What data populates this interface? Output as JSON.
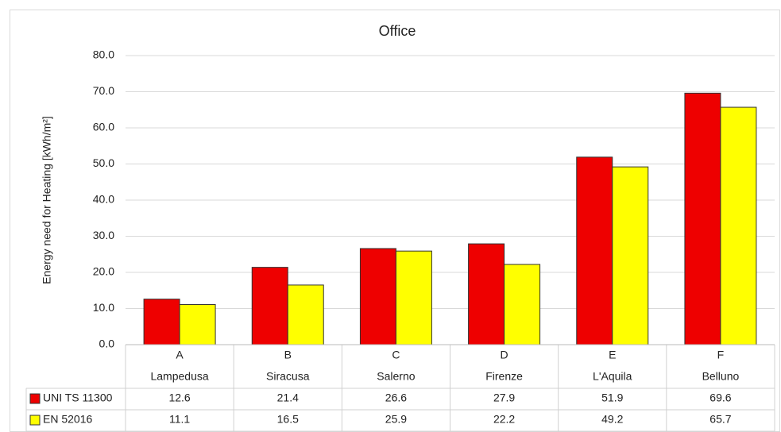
{
  "chart_data": {
    "type": "bar",
    "title": "Office",
    "ylabel": "Energy need for Heating  [kWh/m²]",
    "categories": [
      "A",
      "B",
      "C",
      "D",
      "E",
      "F"
    ],
    "locations": [
      "Lampedusa",
      "Siracusa",
      "Salerno",
      "Firenze",
      "L'Aquila",
      "Belluno"
    ],
    "series": [
      {
        "name": "UNI TS 11300",
        "color": "#ee0000",
        "values": [
          12.6,
          21.4,
          26.6,
          27.9,
          51.9,
          69.6
        ]
      },
      {
        "name": "EN 52016",
        "color": "#ffff00",
        "values": [
          11.1,
          16.5,
          25.9,
          22.2,
          49.2,
          65.7
        ]
      }
    ],
    "ylim": [
      0,
      80
    ],
    "yticks": [
      {
        "value": 0,
        "label": "0.0"
      },
      {
        "value": 10,
        "label": "10.0"
      },
      {
        "value": 20,
        "label": "20.0"
      },
      {
        "value": 30,
        "label": "30.0"
      },
      {
        "value": 40,
        "label": "40.0"
      },
      {
        "value": 50,
        "label": "50.0"
      },
      {
        "value": 60,
        "label": "60.0"
      },
      {
        "value": 70,
        "label": "70.0"
      },
      {
        "value": 80,
        "label": "80.0"
      }
    ],
    "grid": true
  }
}
